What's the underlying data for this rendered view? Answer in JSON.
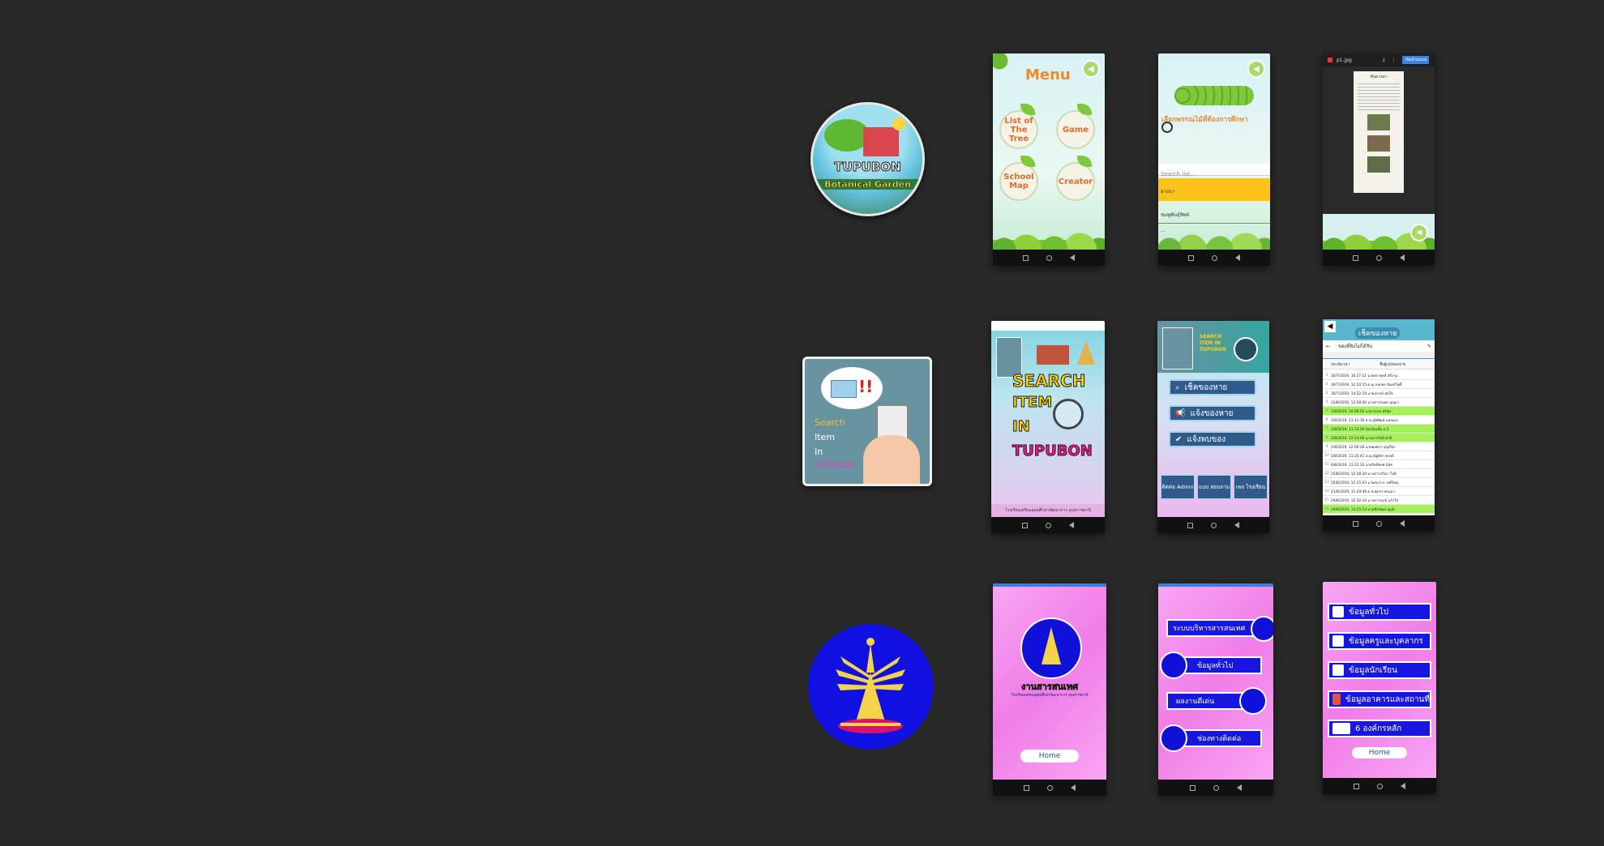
{
  "rows": [
    {
      "logo": {
        "title": "TUPUBON",
        "subtitle": "Botanical Garden"
      },
      "screens": [
        {
          "menu_title": "Menu",
          "buttons": [
            "List of The Tree",
            "Game",
            "School Map",
            "Creator"
          ]
        },
        {
          "heading": "เลือกพรรณไม้ที่ต้องการศึกษา",
          "search_placeholder": "Search list...",
          "items": [
            "ยางนา",
            "ชมพูพันธุ์ทิพย์",
            "..."
          ]
        },
        {
          "file_name": "p1.jpg",
          "action_label": "เปิดด้วยแอป",
          "doc_title": "ต้นยางนา"
        }
      ]
    },
    {
      "logo": {
        "line1": "Search",
        "line2": "Item",
        "line3": "In",
        "line4": "TUPUBON"
      },
      "screens": [
        {
          "line1": "SEARCH",
          "line2": "ITEM",
          "line3": "IN",
          "line4": "TUPUBON",
          "footer": "โรงเรียนเตรียมอุดมศึกษาพัฒนาการ อุบลราชธานี"
        },
        {
          "header_text": "SEARCH ITEM IN TUPUBON",
          "buttons": [
            "เช็คของหาย",
            "แจ้งของหาย",
            "แจ้งพบของ"
          ],
          "bottom": [
            "ติดต่อ Admin",
            "แบบ สอบถาม",
            "เพจ โรงเรียน"
          ]
        },
        {
          "title": "เช็คของหาย",
          "sheet_title": "ของที่ยังไม่ได้รับ",
          "columns": [
            "ประทับเวลา",
            "ชื่อผู้แจ้งของหาย"
          ],
          "rows": [
            "30/7/2019, 10:27:11  นายสรายุทธ์  ศรีงาม",
            "30/7/2019, 11:10:15  ด.ญ.กนกพร  จันทร์โพธิ์",
            "30/7/2019, 14:32:19  นายปกรณ์  สุขใจ",
            "31/8/2019, 13:58:00  นางสาวธนพร  บุญมา",
            "1/8/2019, 10:00:03  นายวรเมธ  ศรีสุข",
            "1/8/2019, 11:11:16  ด.ช.ภูมิพัฒน์  แสงทอง",
            "1/8/2019, 11:13:26  นักเรียนชั้น ม.5",
            "1/8/2019, 12:14:06  นางสาวรัชนี  คำดี",
            "2/8/2019, 12:00:30  นายพงศกร  บุญเรือง",
            "5/8/2019, 11:25:41  ด.ญ.ณัฐธิดา  ทองดี",
            "6/8/2019, 11:22:32  นายกิตติพงษ์  มีสุข",
            "15/8/2019, 12:28:30  นางสาวปวีณา  ใจดี",
            "15/8/2019, 12:35:03  นายธนากร  วงศ์ใหญ่",
            "21/8/2019, 11:29:46  ด.ช.ศุภกร  พรมมา",
            "29/8/2019, 12:30:34  นางสาวอรุณี  แก้วใส",
            "29/8/2019, 13:15:13  นายชัยวัฒน์  บุญมี"
          ]
        }
      ]
    },
    {
      "screens": [
        {
          "title": "งานสารสนเทศ",
          "subtitle": "โรงเรียนเตรียมอุดมศึกษาพัฒนาการ อุบลราชธานี",
          "home": "Home"
        },
        {
          "buttons": [
            "ระบบบริหารสารสนเทศ",
            "ข้อมูลทั่วไป",
            "ผลงานดีเด่น",
            "ช่องทางติดต่อ"
          ]
        },
        {
          "buttons": [
            "ข้อมูลทั่วไป",
            "ข้อมูลครูและบุคลากร",
            "ข้อมูลนักเรียน",
            "ข้อมูลอาคารและสถานที่",
            "6 องค์กรหลัก"
          ],
          "home": "Home"
        }
      ]
    }
  ],
  "colors": {
    "background": "#292929",
    "orange_accent": "#e26a2c",
    "yellow_bar": "#fcc419",
    "pink": "#f7a1f0",
    "royal_blue": "#1616e0",
    "magenta": "#ff1493"
  }
}
